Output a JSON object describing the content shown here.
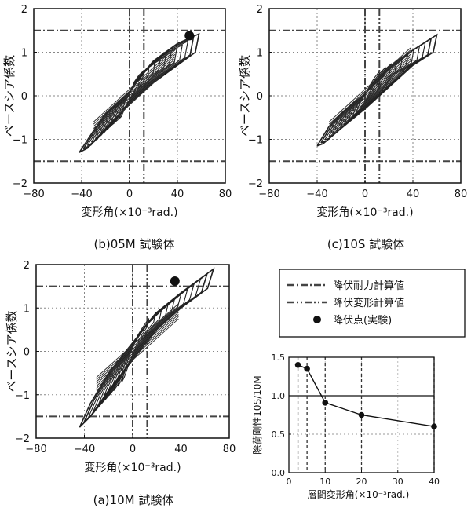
{
  "chart_data": [
    {
      "type": "line",
      "id": "hyst-05M",
      "caption": "(b)05M 試験体",
      "xlabel": "変形角(×10⁻³rad.)",
      "ylabel": "ベースシア係数",
      "xlim": [
        -80,
        80
      ],
      "ylim": [
        -2,
        2
      ],
      "xticks": [
        "−80",
        "−40",
        "0",
        "40",
        "80"
      ],
      "yticks": [
        "2",
        "1",
        "0",
        "−1",
        "−2"
      ],
      "grid": true,
      "ref_lines": {
        "shear_strength_calc": [
          1.5,
          -1.5
        ],
        "yield_deformation_calc": [
          0,
          12
        ]
      },
      "yield_point": {
        "x": 50,
        "y": 1.38
      },
      "envelope": [
        [
          -42,
          -1.3
        ],
        [
          -30,
          -0.8
        ],
        [
          -20,
          -0.4
        ],
        [
          0,
          0.1
        ],
        [
          20,
          0.8
        ],
        [
          40,
          1.2
        ],
        [
          58,
          1.42
        ],
        [
          55,
          1.0
        ],
        [
          40,
          0.7
        ],
        [
          20,
          0.3
        ],
        [
          0,
          -0.2
        ],
        [
          -20,
          -0.75
        ],
        [
          -35,
          -1.2
        ],
        [
          -42,
          -1.3
        ]
      ]
    },
    {
      "type": "line",
      "id": "hyst-10S",
      "caption": "(c)10S 試験体",
      "xlabel": "変形角(×10⁻³rad.)",
      "ylabel": "ベースシア係数",
      "xlim": [
        -80,
        80
      ],
      "ylim": [
        -2,
        2
      ],
      "xticks": [
        "−80",
        "−40",
        "0",
        "40",
        "80"
      ],
      "yticks": [
        "2",
        "1",
        "0",
        "−1",
        "−2"
      ],
      "grid": true,
      "ref_lines": {
        "shear_strength_calc": [
          1.5,
          -1.5
        ],
        "yield_deformation_calc": [
          0,
          12
        ]
      },
      "yield_point": null,
      "envelope": [
        [
          -40,
          -1.15
        ],
        [
          -30,
          -0.7
        ],
        [
          -20,
          -0.4
        ],
        [
          0,
          0.05
        ],
        [
          20,
          0.6
        ],
        [
          40,
          1.05
        ],
        [
          60,
          1.4
        ],
        [
          57,
          1.0
        ],
        [
          40,
          0.7
        ],
        [
          20,
          0.2
        ],
        [
          0,
          -0.3
        ],
        [
          -20,
          -0.75
        ],
        [
          -35,
          -1.1
        ],
        [
          -40,
          -1.15
        ]
      ]
    },
    {
      "type": "line",
      "id": "hyst-10M",
      "caption": "(a)10M 試験体",
      "xlabel": "変形角(×10⁻³rad.)",
      "ylabel": "ベースシア係数",
      "xlim": [
        -80,
        80
      ],
      "ylim": [
        -2,
        2
      ],
      "xticks": [
        "−80",
        "−40",
        "0",
        "40",
        "80"
      ],
      "yticks": [
        "2",
        "1",
        "0",
        "−1",
        "−2"
      ],
      "grid": true,
      "ref_lines": {
        "shear_strength_calc": [
          1.5,
          -1.5
        ],
        "yield_deformation_calc": [
          0,
          12
        ]
      },
      "yield_point": {
        "x": 35,
        "y": 1.62
      },
      "envelope": [
        [
          -44,
          -1.75
        ],
        [
          -35,
          -1.2
        ],
        [
          -20,
          -0.5
        ],
        [
          0,
          0.2
        ],
        [
          20,
          0.9
        ],
        [
          40,
          1.35
        ],
        [
          67,
          1.9
        ],
        [
          62,
          1.45
        ],
        [
          40,
          1.0
        ],
        [
          20,
          0.5
        ],
        [
          0,
          -0.2
        ],
        [
          -20,
          -0.9
        ],
        [
          -35,
          -1.5
        ],
        [
          -44,
          -1.75
        ]
      ]
    },
    {
      "type": "line",
      "id": "stiffness-ratio",
      "xlabel": "層間変形角(×10⁻³rad.)",
      "ylabel": "除荷剛性10S/10M",
      "xlim": [
        0,
        40
      ],
      "ylim": [
        0,
        1.5
      ],
      "xticks": [
        "0",
        "10",
        "20",
        "30",
        "40"
      ],
      "yticks": [
        "1.5",
        "1.0",
        "0.5",
        "0.0"
      ],
      "ref_y": 1.0,
      "dashed_x": [
        2.5,
        5,
        10,
        20,
        40
      ],
      "x": [
        2.5,
        5,
        10,
        20,
        40
      ],
      "y": [
        1.4,
        1.35,
        0.91,
        0.75,
        0.6
      ]
    }
  ],
  "legend": {
    "items": [
      {
        "label": "降伏耐力計算値",
        "style": "dash-dot"
      },
      {
        "label": "降伏変形計算値",
        "style": "dash-dot-dot"
      },
      {
        "label": "降伏点(実験)",
        "style": "marker"
      }
    ]
  }
}
